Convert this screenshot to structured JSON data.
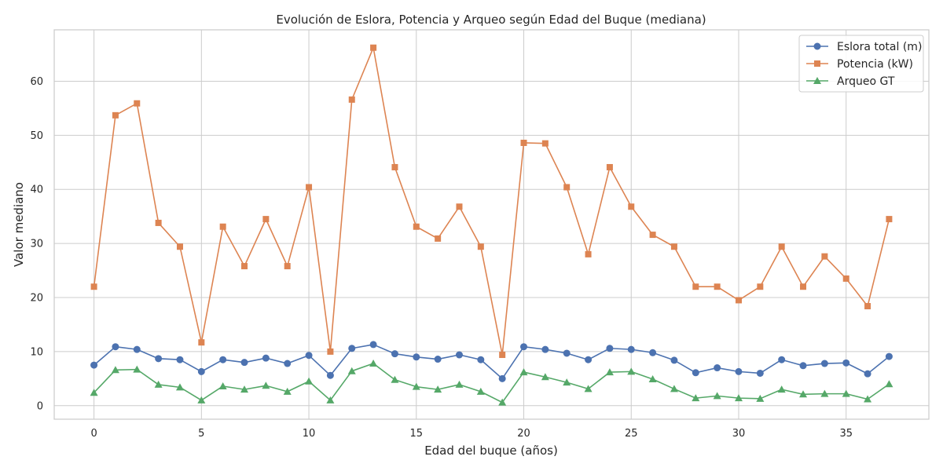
{
  "chart_data": {
    "type": "line",
    "title": "Evolución de Eslora, Potencia y Arqueo según Edad del Buque (mediana)",
    "xlabel": "Edad del buque (años)",
    "ylabel": "Valor mediano",
    "xlim": [
      -1.85,
      38.85
    ],
    "ylim": [
      -2.5,
      69.5
    ],
    "xticks": [
      0,
      5,
      10,
      15,
      20,
      25,
      30,
      35
    ],
    "yticks": [
      0,
      10,
      20,
      30,
      40,
      50,
      60
    ],
    "grid": true,
    "legend_position": "top-right",
    "x": [
      0,
      1,
      2,
      3,
      4,
      5,
      6,
      7,
      8,
      9,
      10,
      11,
      12,
      13,
      14,
      15,
      16,
      17,
      18,
      19,
      20,
      21,
      22,
      23,
      24,
      25,
      26,
      27,
      28,
      29,
      30,
      31,
      32,
      33,
      34,
      35,
      36,
      37
    ],
    "series": [
      {
        "name": "Eslora total (m)",
        "color": "#4c72b0",
        "marker": "circle",
        "values": [
          7.5,
          10.9,
          10.4,
          8.7,
          8.5,
          6.3,
          8.5,
          8.0,
          8.8,
          7.8,
          9.3,
          5.6,
          10.6,
          11.3,
          9.6,
          9.0,
          8.6,
          9.4,
          8.5,
          5.0,
          10.9,
          10.4,
          9.7,
          8.5,
          10.6,
          10.4,
          9.8,
          8.4,
          6.1,
          7.0,
          6.3,
          6.0,
          8.5,
          7.4,
          7.8,
          7.9,
          5.9,
          9.1
        ]
      },
      {
        "name": "Potencia (kW)",
        "color": "#dd8452",
        "marker": "square",
        "values": [
          22.0,
          53.7,
          55.9,
          33.8,
          29.4,
          11.7,
          33.1,
          25.8,
          34.5,
          25.8,
          40.4,
          10.0,
          56.6,
          66.2,
          44.1,
          33.1,
          30.9,
          36.8,
          29.4,
          9.4,
          48.6,
          48.5,
          40.4,
          28.0,
          44.1,
          36.8,
          31.6,
          29.4,
          22.0,
          22.0,
          19.5,
          22.0,
          29.4,
          22.0,
          27.6,
          23.5,
          18.4,
          34.5
        ]
      },
      {
        "name": "Arqueo GT",
        "color": "#55a868",
        "marker": "triangle",
        "values": [
          2.4,
          6.6,
          6.7,
          3.9,
          3.4,
          1.0,
          3.6,
          3.0,
          3.7,
          2.6,
          4.5,
          1.0,
          6.4,
          7.8,
          4.8,
          3.5,
          3.0,
          3.9,
          2.6,
          0.6,
          6.2,
          5.3,
          4.3,
          3.1,
          6.2,
          6.3,
          4.9,
          3.1,
          1.4,
          1.8,
          1.4,
          1.3,
          3.0,
          2.1,
          2.2,
          2.2,
          1.2,
          4.0
        ]
      }
    ]
  }
}
